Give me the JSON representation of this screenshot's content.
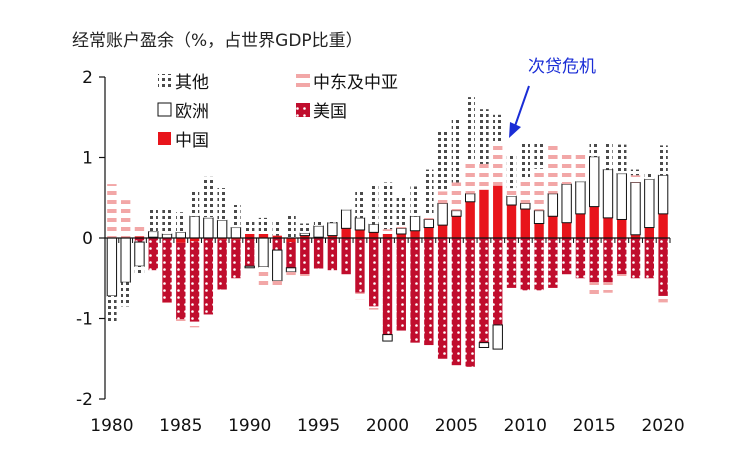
{
  "chart_data": {
    "type": "bar",
    "stacked": true,
    "title": "经常账户盈余（%，占世界GDP比重）",
    "xlabel": "",
    "ylabel": "",
    "ylim": [
      -2,
      2
    ],
    "yticks": [
      "-2",
      "-1",
      "0",
      "1",
      "2"
    ],
    "xticks": [
      "1980",
      "1985",
      "1990",
      "1995",
      "2000",
      "2005",
      "2010",
      "2015",
      "2020"
    ],
    "annotation": "次贷危机",
    "annotation_year": 2009,
    "legend": [
      "其他",
      "中东及中亚",
      "欧洲",
      "美国",
      "中国"
    ],
    "colors": {
      "china": "#e8141b",
      "usa": "#c00d2d",
      "europe": "#ffffff",
      "mideast": "#f2a7a7",
      "other": "#555555",
      "annotation": "#1a2dd6"
    },
    "years": [
      1980,
      1981,
      1982,
      1983,
      1984,
      1985,
      1986,
      1987,
      1988,
      1989,
      1990,
      1991,
      1992,
      1993,
      1994,
      1995,
      1996,
      1997,
      1998,
      1999,
      2000,
      2001,
      2002,
      2003,
      2004,
      2005,
      2006,
      2007,
      2008,
      2009,
      2010,
      2011,
      2012,
      2013,
      2014,
      2015,
      2016,
      2017,
      2018,
      2019,
      2020
    ],
    "series": [
      {
        "name": "中国",
        "values": [
          0,
          0.01,
          0.02,
          0.01,
          0,
          -0.06,
          -0.04,
          0,
          -0.02,
          -0.02,
          0.05,
          0.05,
          0.03,
          -0.05,
          0.03,
          0.01,
          0.03,
          0.12,
          0.1,
          0.07,
          0.05,
          0.05,
          0.09,
          0.13,
          0.16,
          0.27,
          0.45,
          0.6,
          0.65,
          0.41,
          0.36,
          0.18,
          0.27,
          0.19,
          0.3,
          0.39,
          0.25,
          0.23,
          0.04,
          0.13,
          0.3
        ]
      },
      {
        "name": "美国",
        "values": [
          0,
          0,
          -0.05,
          -0.4,
          -0.8,
          -0.95,
          -1,
          -0.95,
          -0.62,
          -0.48,
          -0.35,
          0,
          -0.15,
          -0.32,
          -0.45,
          -0.38,
          -0.4,
          -0.45,
          -0.68,
          -0.85,
          -1.2,
          -1.15,
          -1.3,
          -1.33,
          -1.5,
          -1.58,
          -1.6,
          -1.3,
          -1.08,
          -0.62,
          -0.65,
          -0.65,
          -0.62,
          -0.45,
          -0.5,
          -0.55,
          -0.55,
          -0.45,
          -0.5,
          -0.5,
          -0.72
        ]
      },
      {
        "name": "欧洲",
        "values": [
          -0.72,
          -0.55,
          -0.3,
          0.07,
          0.05,
          0.07,
          0.27,
          0.25,
          0.22,
          0.13,
          -0.02,
          -0.36,
          -0.38,
          -0.05,
          0.03,
          0.14,
          0.16,
          0.23,
          0.15,
          0.1,
          -0.08,
          0.07,
          0.18,
          0.1,
          0.27,
          0.07,
          0.1,
          -0.06,
          -0.3,
          0.11,
          0.07,
          0.16,
          0.28,
          0.48,
          0.4,
          0.62,
          0.6,
          0.57,
          0.65,
          0.6,
          0.48
        ]
      },
      {
        "name": "中东及中亚",
        "values": [
          0.67,
          0.46,
          0.12,
          0,
          -0.05,
          -0.05,
          -0.07,
          0.01,
          0,
          0,
          0,
          -0.26,
          -0.08,
          -0.04,
          -0.03,
          -0.03,
          0,
          0,
          -0.08,
          -0.04,
          0.06,
          0.03,
          0,
          0.05,
          0.15,
          0.35,
          0.42,
          0.32,
          0.55,
          0.1,
          0.3,
          0.52,
          0.63,
          0.4,
          0.35,
          -0.18,
          -0.13,
          -0.05,
          0.09,
          0,
          -0.08
        ]
      },
      {
        "name": "其他",
        "values": [
          -0.33,
          -0.3,
          -0.1,
          0.3,
          0.32,
          0.25,
          0.33,
          0.5,
          0.4,
          0.28,
          0.16,
          0.2,
          0.2,
          0.28,
          0.12,
          0.08,
          0.04,
          0.03,
          0.33,
          0.49,
          0.58,
          0.38,
          0.37,
          0.57,
          0.75,
          0.8,
          0.78,
          0.68,
          0.33,
          0.43,
          0.46,
          0.32,
          0,
          0,
          0,
          0.19,
          0.34,
          0.36,
          0.07,
          0.08,
          0.37
        ]
      }
    ]
  }
}
